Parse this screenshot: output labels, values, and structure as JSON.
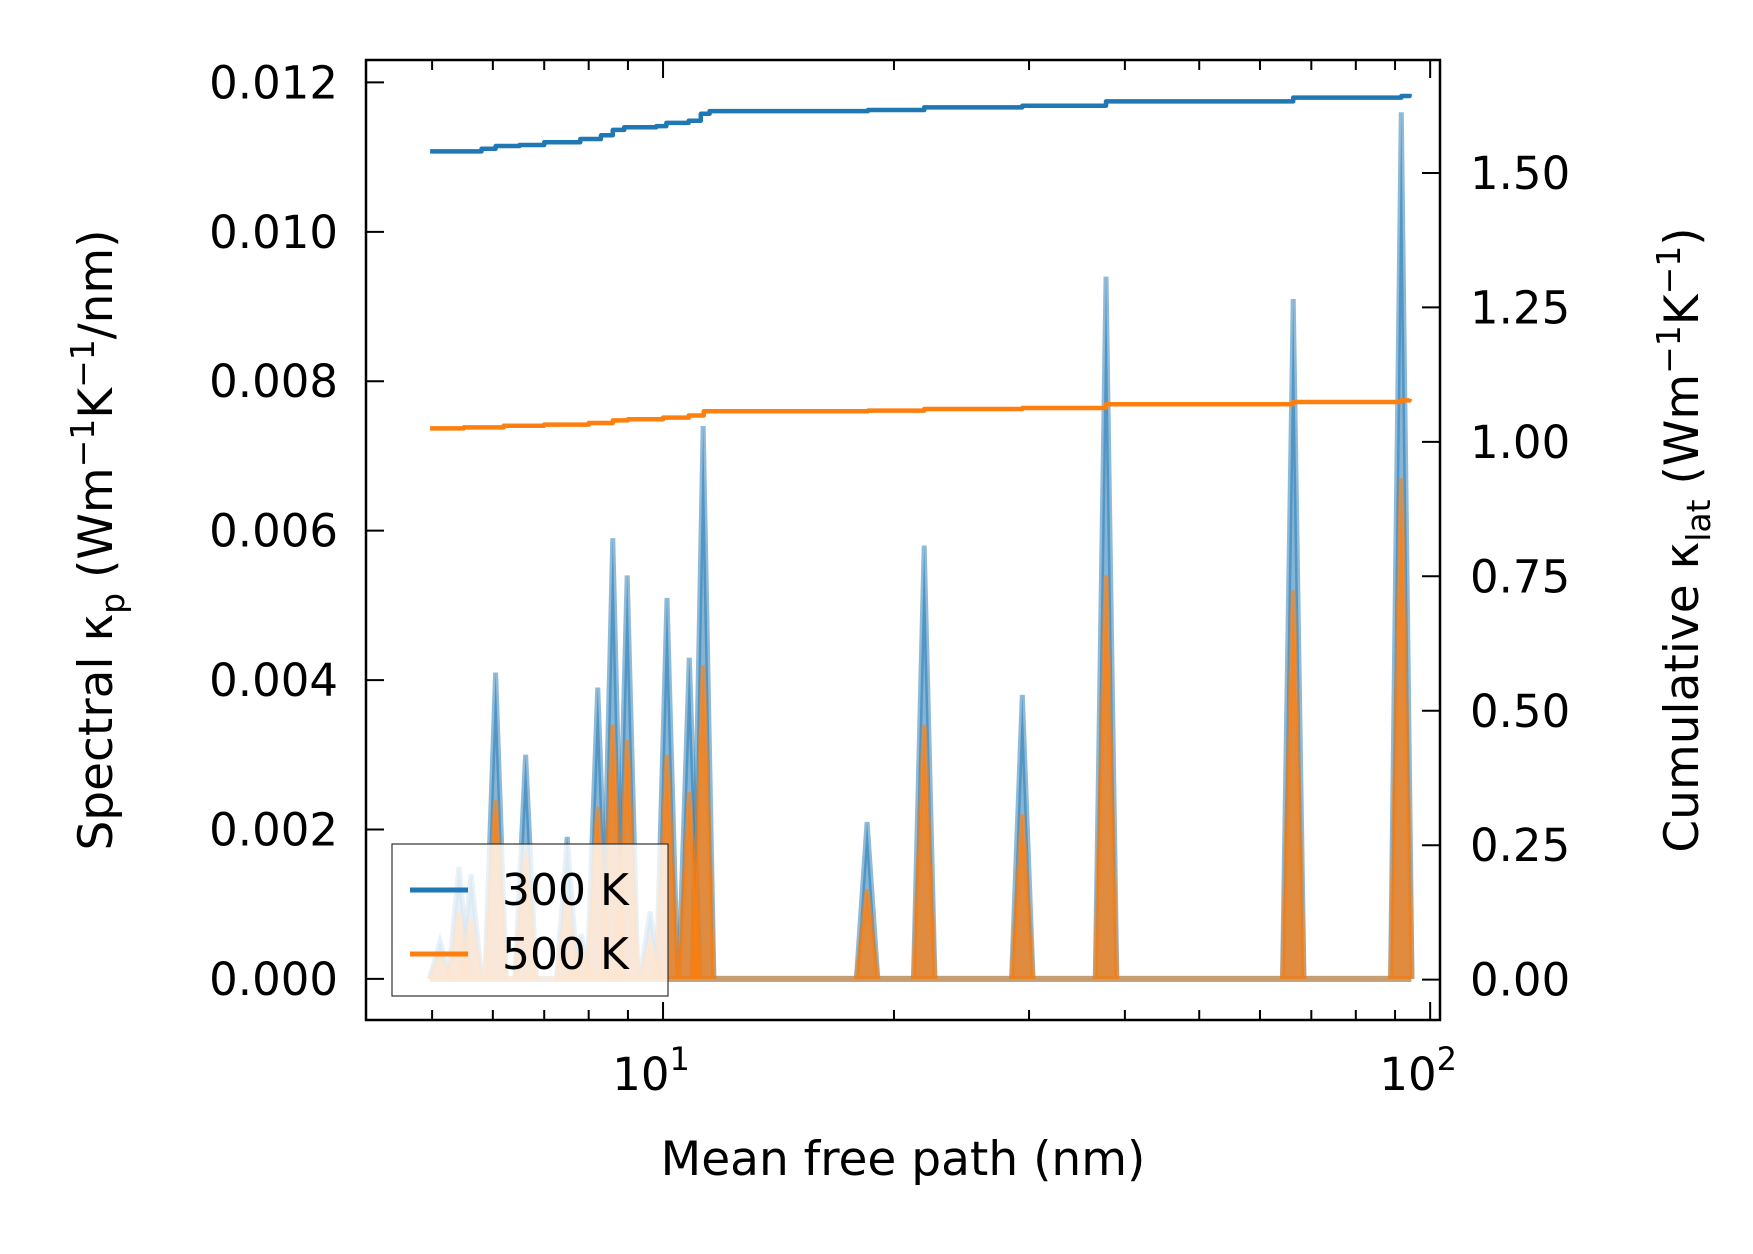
{
  "chart_data": {
    "type": "line",
    "x_scale": "log",
    "xlabel": "Mean free path (nm)",
    "ylabel_left": {
      "prefix": "Spectral κ",
      "sub": "p",
      "suffix": " (Wm",
      "sup1": "−1",
      "mid": "K",
      "sup2": "−1",
      "end": "/nm)"
    },
    "ylabel_right": {
      "prefix": "Cumulative κ",
      "sub": "lat",
      "suffix": " (Wm",
      "sup1": "−1",
      "mid": "K",
      "sup2": "−1",
      "end": ")"
    },
    "xlim": [
      4.1,
      103
    ],
    "ylim_left": [
      -0.00055,
      0.0123
    ],
    "ylim_right": [
      -0.075,
      1.71
    ],
    "x_ticks": [
      {
        "value": 10,
        "base": "10",
        "exp": "1"
      },
      {
        "value": 100,
        "base": "10",
        "exp": "2"
      }
    ],
    "y_left_ticks": [
      {
        "value": 0.0,
        "label": "0.000"
      },
      {
        "value": 0.002,
        "label": "0.002"
      },
      {
        "value": 0.004,
        "label": "0.004"
      },
      {
        "value": 0.006,
        "label": "0.006"
      },
      {
        "value": 0.008,
        "label": "0.008"
      },
      {
        "value": 0.01,
        "label": "0.010"
      },
      {
        "value": 0.012,
        "label": "0.012"
      }
    ],
    "y_right_ticks": [
      {
        "value": 0.0,
        "label": "0.00"
      },
      {
        "value": 0.25,
        "label": "0.25"
      },
      {
        "value": 0.5,
        "label": "0.50"
      },
      {
        "value": 0.75,
        "label": "0.75"
      },
      {
        "value": 1.0,
        "label": "1.00"
      },
      {
        "value": 1.25,
        "label": "1.25"
      },
      {
        "value": 1.5,
        "label": "1.50"
      }
    ],
    "legend": {
      "position": "lower-left",
      "entries": [
        {
          "label": "300 K",
          "color": "#1f77b4"
        },
        {
          "label": "500 K",
          "color": "#ff7f0e"
        }
      ]
    },
    "series": [
      {
        "name": "300 K",
        "color": "#1f77b4",
        "spectral_peaks": [
          {
            "x": 5.12,
            "y": 0.0005
          },
          {
            "x": 5.42,
            "y": 0.0015
          },
          {
            "x": 5.62,
            "y": 0.0014
          },
          {
            "x": 6.05,
            "y": 0.0041
          },
          {
            "x": 6.62,
            "y": 0.003
          },
          {
            "x": 7.5,
            "y": 0.0019
          },
          {
            "x": 7.82,
            "y": 0.0006
          },
          {
            "x": 8.22,
            "y": 0.0039
          },
          {
            "x": 8.6,
            "y": 0.0059
          },
          {
            "x": 8.98,
            "y": 0.0054
          },
          {
            "x": 9.62,
            "y": 0.0009
          },
          {
            "x": 10.12,
            "y": 0.0051
          },
          {
            "x": 10.82,
            "y": 0.0043
          },
          {
            "x": 11.28,
            "y": 0.0074
          },
          {
            "x": 18.45,
            "y": 0.0021
          },
          {
            "x": 21.9,
            "y": 0.0058
          },
          {
            "x": 29.4,
            "y": 0.0038
          },
          {
            "x": 37.8,
            "y": 0.0094
          },
          {
            "x": 66.3,
            "y": 0.0091
          },
          {
            "x": 91.7,
            "y": 0.0116
          }
        ],
        "cumulative": [
          [
            4.97,
            1.54
          ],
          [
            5.3,
            1.54
          ],
          [
            5.8,
            1.545
          ],
          [
            6.05,
            1.55
          ],
          [
            6.5,
            1.552
          ],
          [
            7.0,
            1.557
          ],
          [
            7.8,
            1.563
          ],
          [
            8.3,
            1.57
          ],
          [
            8.6,
            1.58
          ],
          [
            8.9,
            1.585
          ],
          [
            9.8,
            1.587
          ],
          [
            10.1,
            1.593
          ],
          [
            10.8,
            1.597
          ],
          [
            11.2,
            1.61
          ],
          [
            11.5,
            1.615
          ],
          [
            18.5,
            1.617
          ],
          [
            21.9,
            1.622
          ],
          [
            29.4,
            1.625
          ],
          [
            37.8,
            1.633
          ],
          [
            66.3,
            1.64
          ],
          [
            91.7,
            1.643
          ],
          [
            94.0,
            1.647
          ]
        ]
      },
      {
        "name": "500 K",
        "color": "#ff7f0e",
        "spectral_peaks": [
          {
            "x": 5.12,
            "y": 0.0003
          },
          {
            "x": 5.42,
            "y": 0.0009
          },
          {
            "x": 5.62,
            "y": 0.0008
          },
          {
            "x": 6.05,
            "y": 0.0024
          },
          {
            "x": 6.62,
            "y": 0.0017
          },
          {
            "x": 7.5,
            "y": 0.0011
          },
          {
            "x": 7.82,
            "y": 0.0004
          },
          {
            "x": 8.22,
            "y": 0.0023
          },
          {
            "x": 8.6,
            "y": 0.0034
          },
          {
            "x": 8.98,
            "y": 0.0032
          },
          {
            "x": 9.62,
            "y": 0.0005
          },
          {
            "x": 10.12,
            "y": 0.003
          },
          {
            "x": 10.82,
            "y": 0.0025
          },
          {
            "x": 11.28,
            "y": 0.0042
          },
          {
            "x": 18.45,
            "y": 0.0012
          },
          {
            "x": 21.9,
            "y": 0.0034
          },
          {
            "x": 29.4,
            "y": 0.0022
          },
          {
            "x": 37.8,
            "y": 0.0054
          },
          {
            "x": 66.3,
            "y": 0.0052
          },
          {
            "x": 91.7,
            "y": 0.0067
          }
        ],
        "cumulative": [
          [
            4.97,
            1.025
          ],
          [
            5.5,
            1.027
          ],
          [
            6.2,
            1.03
          ],
          [
            7.0,
            1.032
          ],
          [
            8.0,
            1.035
          ],
          [
            8.6,
            1.04
          ],
          [
            9.0,
            1.042
          ],
          [
            10.0,
            1.045
          ],
          [
            10.8,
            1.049
          ],
          [
            11.3,
            1.057
          ],
          [
            18.5,
            1.058
          ],
          [
            21.9,
            1.061
          ],
          [
            29.4,
            1.063
          ],
          [
            37.8,
            1.07
          ],
          [
            66.3,
            1.074
          ],
          [
            91.7,
            1.077
          ],
          [
            94.0,
            1.08
          ]
        ]
      }
    ]
  }
}
